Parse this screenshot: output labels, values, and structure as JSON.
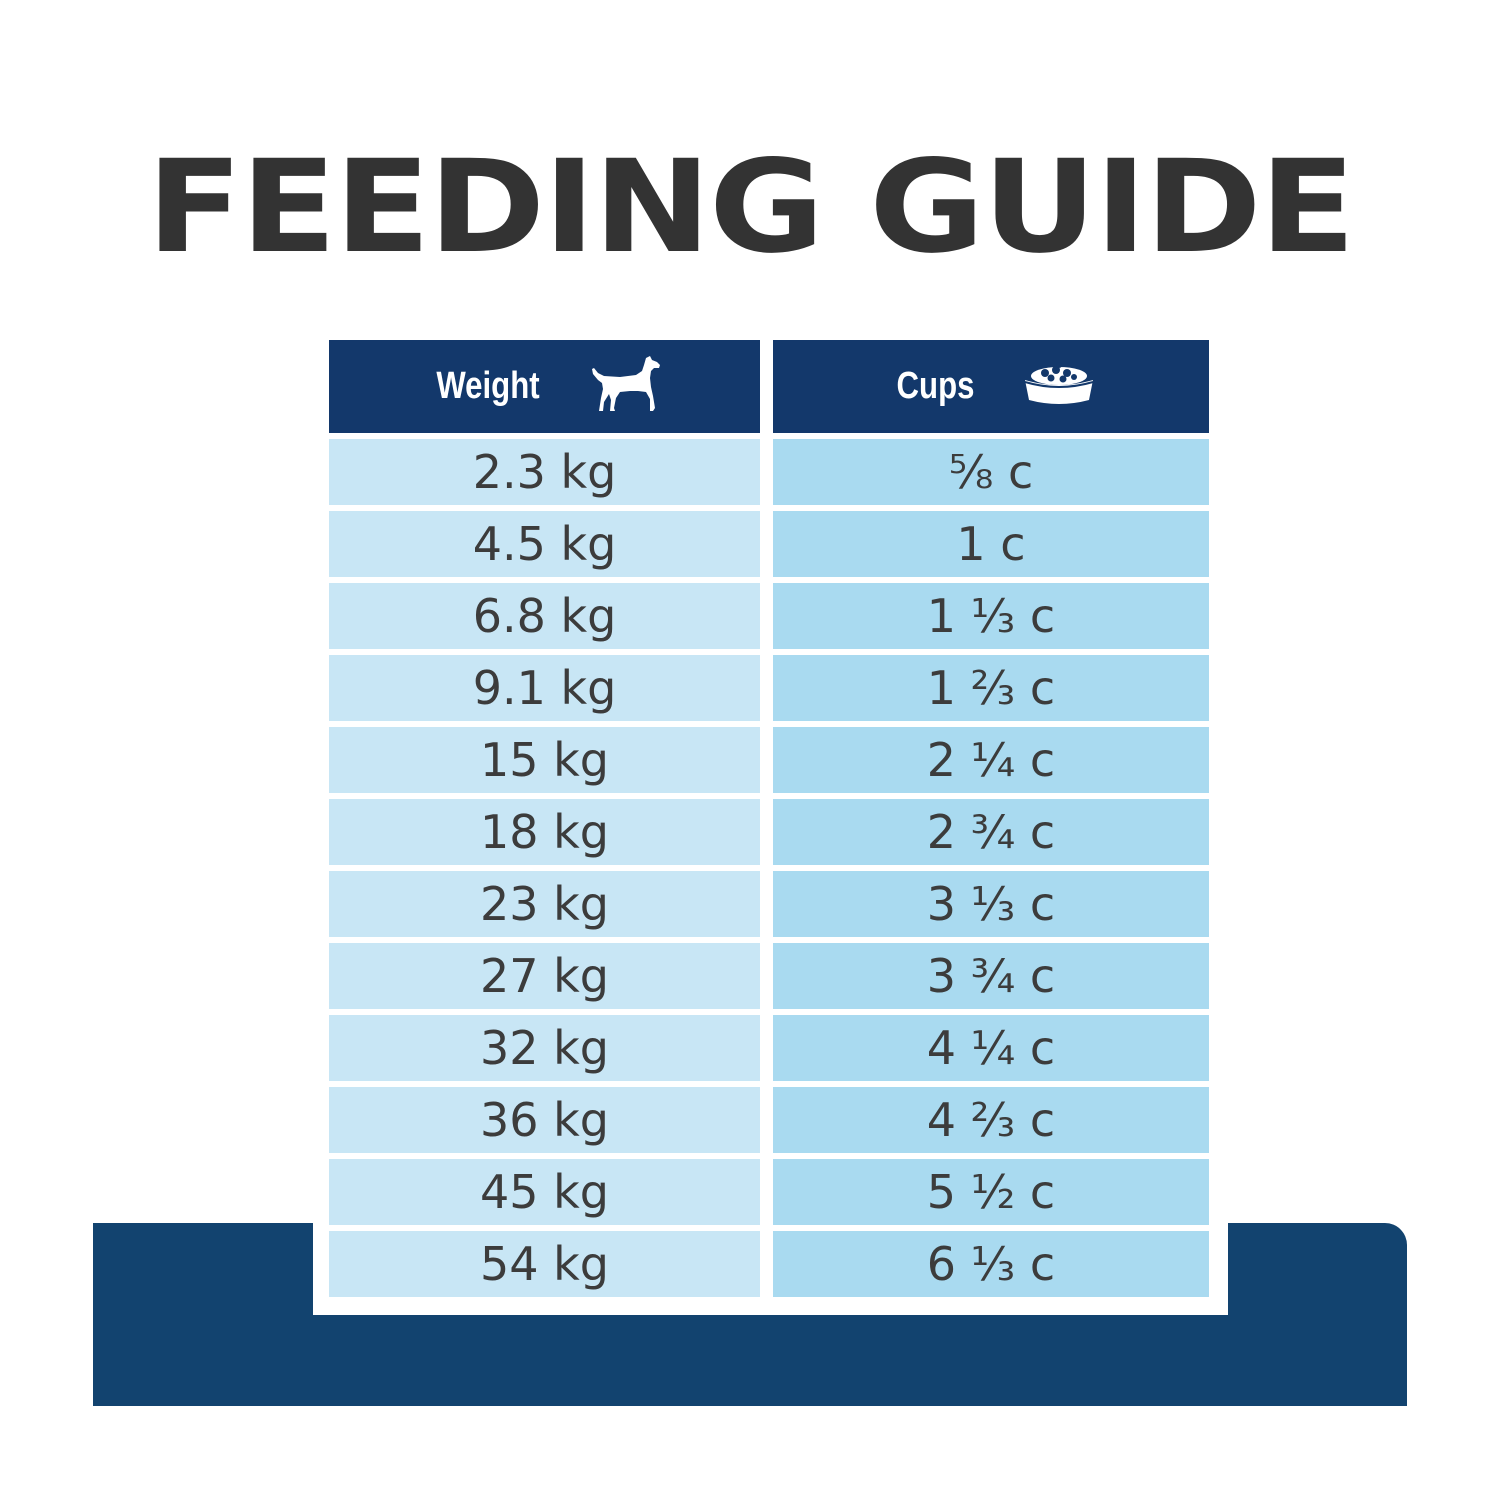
{
  "title": "FEEDING GUIDE",
  "colors": {
    "header_bg": "#13386b",
    "weight_cell_bg": "#c8e6f5",
    "cups_cell_bg": "#a9daf0",
    "base_band": "#12436f",
    "title_text": "#333333"
  },
  "table": {
    "headers": {
      "weight": "Weight",
      "weight_icon": "dog-icon",
      "cups": "Cups",
      "cups_icon": "food-bowl-icon"
    },
    "rows": [
      {
        "weight": "2.3 kg",
        "cups": "⅝ c"
      },
      {
        "weight": "4.5 kg",
        "cups": "1 c"
      },
      {
        "weight": "6.8 kg",
        "cups": "1 ⅓ c"
      },
      {
        "weight": "9.1 kg",
        "cups": "1 ⅔ c"
      },
      {
        "weight": "15 kg",
        "cups": "2 ¼ c"
      },
      {
        "weight": "18 kg",
        "cups": "2 ¾ c"
      },
      {
        "weight": "23 kg",
        "cups": "3 ⅓ c"
      },
      {
        "weight": "27 kg",
        "cups": "3 ¾ c"
      },
      {
        "weight": "32 kg",
        "cups": "4 ¼ c"
      },
      {
        "weight": "36 kg",
        "cups": "4 ⅔ c"
      },
      {
        "weight": "45 kg",
        "cups": "5 ½ c"
      },
      {
        "weight": "54 kg",
        "cups": "6 ⅓ c"
      }
    ]
  }
}
